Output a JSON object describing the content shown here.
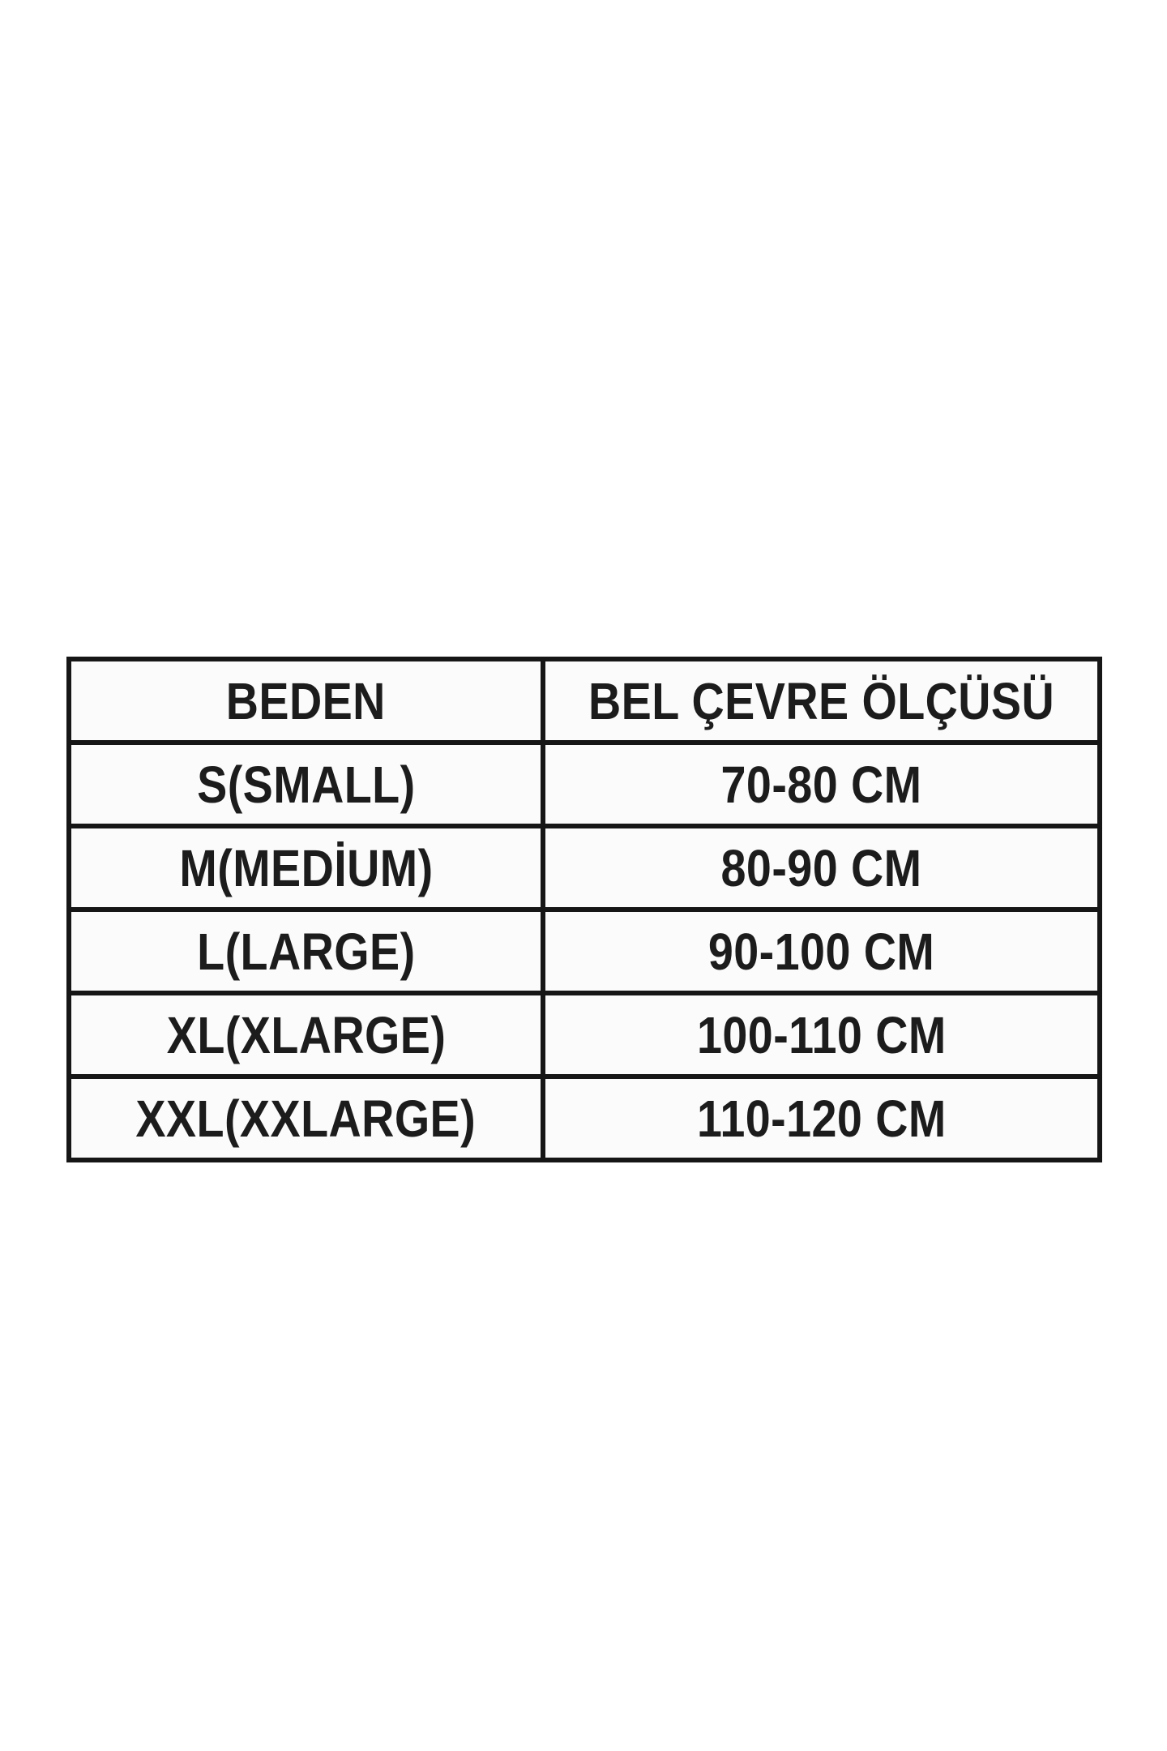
{
  "page": {
    "background_color": "#ffffff",
    "text_color": "#1c1c1c",
    "border_color": "#161616"
  },
  "table": {
    "header": {
      "size_label": "BEDEN",
      "waist_label": "BEL ÇEVRE ÖLÇÜSÜ"
    },
    "rows": [
      {
        "size": "S(SMALL)",
        "waist": "70-80 CM"
      },
      {
        "size": "M(MEDİUM)",
        "waist": "80-90 CM"
      },
      {
        "size": "L(LARGE)",
        "waist": "90-100 CM"
      },
      {
        "size": "XL(XLARGE)",
        "waist": "100-110 CM"
      },
      {
        "size": "XXL(XXLARGE)",
        "waist": "110-120 CM"
      }
    ]
  },
  "chart_data": {
    "type": "table",
    "title": "",
    "columns": [
      "BEDEN",
      "BEL ÇEVRE ÖLÇÜSÜ"
    ],
    "rows": [
      [
        "S(SMALL)",
        "70-80 CM"
      ],
      [
        "M(MEDİUM)",
        "80-90 CM"
      ],
      [
        "L(LARGE)",
        "90-100 CM"
      ],
      [
        "XL(XLARGE)",
        "100-110 CM"
      ],
      [
        "XXL(XXLARGE)",
        "110-120 CM"
      ]
    ],
    "layout_hints": {
      "header_row": true,
      "grid": "all-borders",
      "text_align": "center"
    }
  }
}
